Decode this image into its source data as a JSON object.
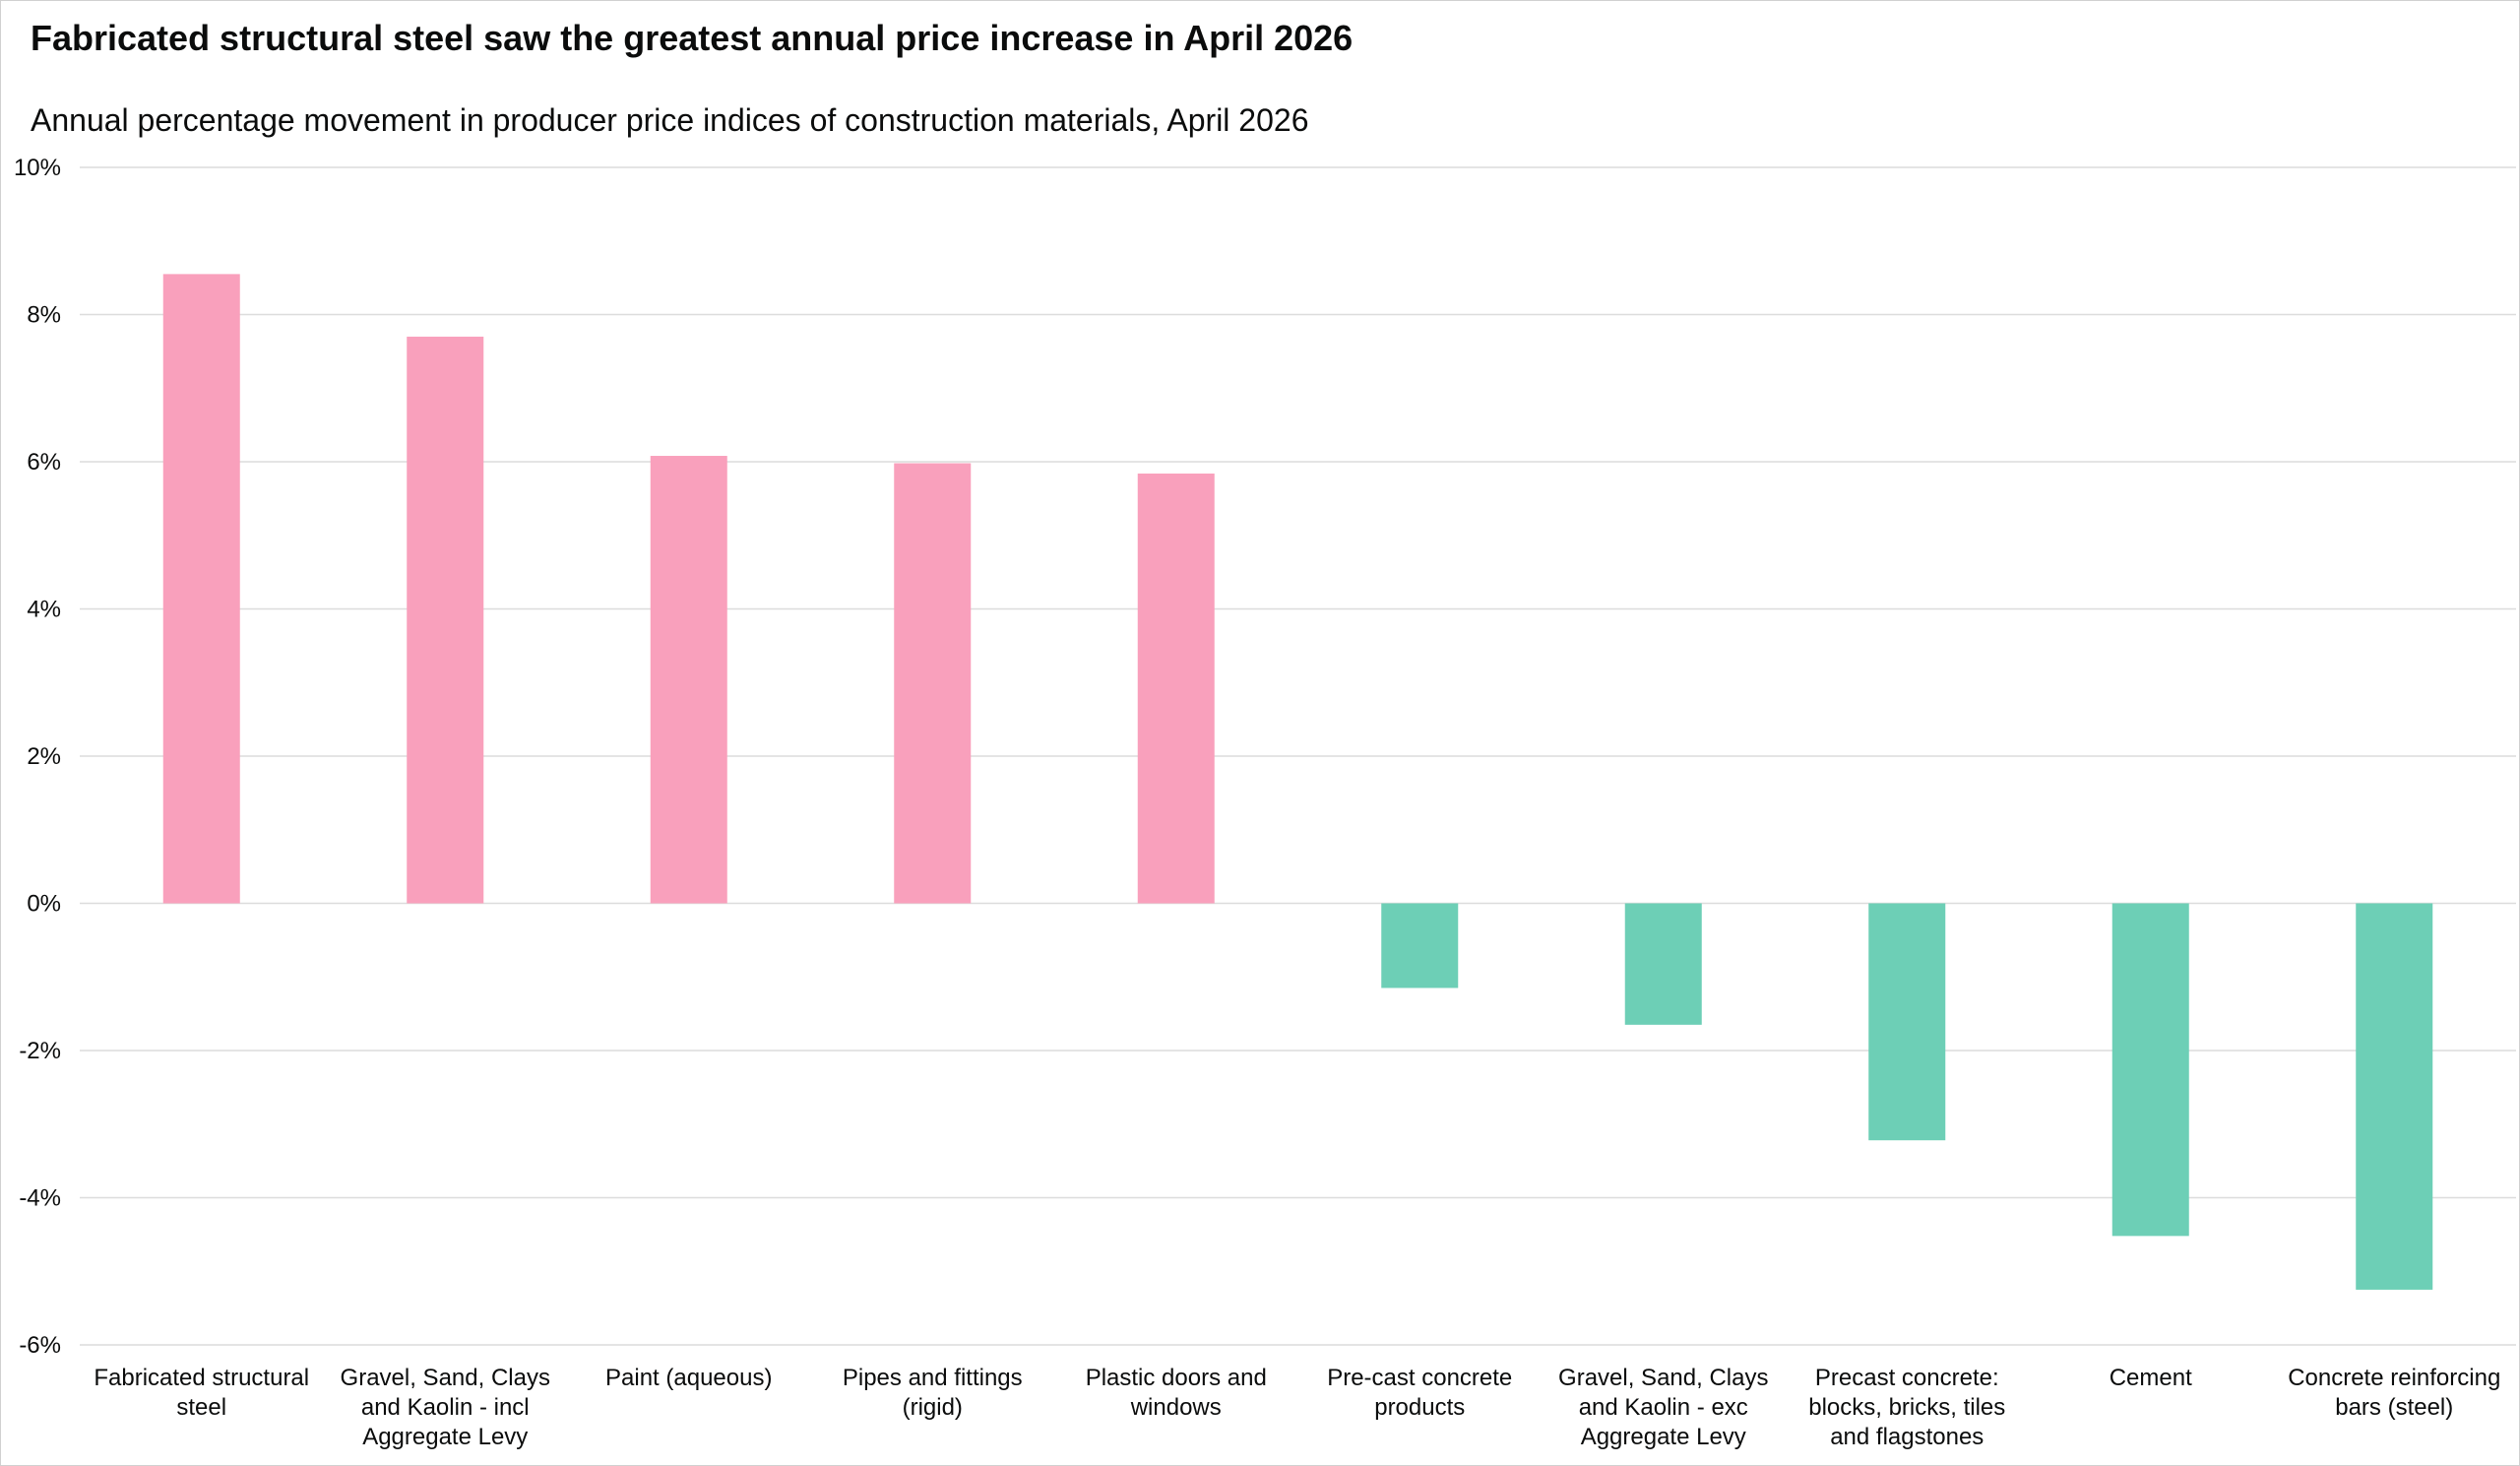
{
  "header": {
    "title": "Fabricated structural steel saw the greatest annual price increase in April 2026",
    "subtitle": "Annual percentage movement in producer price indices of construction materials, April 2026"
  },
  "chart_data": {
    "type": "bar",
    "title": "Fabricated structural steel saw the greatest annual price increase in April 2026",
    "subtitle": "Annual percentage movement in producer price indices of construction materials, April 2026",
    "categories": [
      [
        "Fabricated structural",
        "steel"
      ],
      [
        "Gravel, Sand, Clays",
        "and Kaolin - incl",
        "Aggregate Levy"
      ],
      [
        "Paint (aqueous)"
      ],
      [
        "Pipes and fittings",
        "(rigid)"
      ],
      [
        "Plastic doors and",
        "windows"
      ],
      [
        "Pre-cast concrete",
        "products"
      ],
      [
        "Gravel, Sand, Clays",
        "and Kaolin - exc",
        "Aggregate Levy"
      ],
      [
        "Precast concrete:",
        "blocks, bricks, tiles",
        "and flagstones"
      ],
      [
        "Cement"
      ],
      [
        "Concrete reinforcing",
        "bars (steel)"
      ]
    ],
    "values": [
      8.55,
      7.7,
      6.08,
      5.98,
      5.84,
      -1.15,
      -1.65,
      -3.22,
      -4.52,
      -5.25
    ],
    "ylim": [
      -6,
      10
    ],
    "yticks": [
      10,
      8,
      6,
      4,
      2,
      0,
      -2,
      -4,
      -6
    ],
    "ytick_labels": [
      "10%",
      "8%",
      "6%",
      "4%",
      "2%",
      "0%",
      "-2%",
      "-4%",
      "-6%"
    ],
    "grid": true,
    "legend": "none",
    "colors": {
      "positive": "#f9a0bc",
      "negative": "#6dcfb6",
      "gridline": "#dcdcdc",
      "text": "#0b0c0c"
    }
  }
}
